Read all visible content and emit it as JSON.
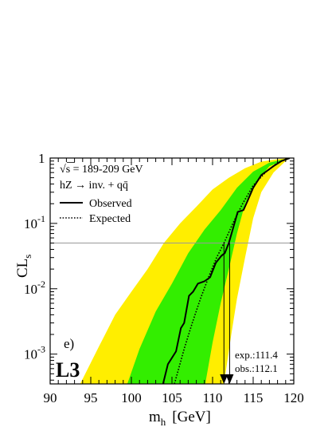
{
  "chart_data": {
    "type": "area",
    "panel_label": "e)",
    "logo": "L3",
    "xlabel": "m",
    "xlabel_sub": "h",
    "xlabel_unit": "[GeV]",
    "ylabel": "CL",
    "ylabel_sub": "s",
    "xlim": [
      90,
      120
    ],
    "ylim": [
      0.00035,
      1
    ],
    "yscale": "log",
    "x_ticks": [
      90,
      95,
      100,
      105,
      110,
      115,
      120
    ],
    "y_ticks": [
      {
        "value": 0.001,
        "base": "10",
        "exp": "-3"
      },
      {
        "value": 0.01,
        "base": "10",
        "exp": "-2"
      },
      {
        "value": 0.1,
        "base": "10",
        "exp": "-1"
      },
      {
        "value": 1,
        "base": "1",
        "exp": ""
      }
    ],
    "reference_line": 0.05,
    "legend": {
      "energy": "s = 189-209 GeV",
      "energy_prefix": "√",
      "process": "hZ → inv. + qq̄",
      "observed": "Observed",
      "expected": "Expected"
    },
    "limits_text": {
      "expected": "exp.:111.4",
      "observed": "obs.:112.1"
    },
    "limits": {
      "expected": 111.4,
      "observed": 112.1
    },
    "colors": {
      "band2": "#ffee00",
      "band1": "#33ee00"
    },
    "band_2sigma_lower": [
      [
        93.7,
        0.00035
      ],
      [
        96,
        0.0013
      ],
      [
        98,
        0.004
      ],
      [
        100,
        0.009
      ],
      [
        102,
        0.02
      ],
      [
        104,
        0.05
      ],
      [
        106,
        0.1
      ],
      [
        108,
        0.18
      ],
      [
        110,
        0.33
      ],
      [
        112,
        0.5
      ],
      [
        114,
        0.7
      ],
      [
        116,
        0.88
      ],
      [
        118,
        0.96
      ],
      [
        119.5,
        1
      ]
    ],
    "band_2sigma_upper": [
      [
        111.4,
        0.00035
      ],
      [
        112.3,
        0.002
      ],
      [
        113,
        0.007
      ],
      [
        114,
        0.03
      ],
      [
        115,
        0.12
      ],
      [
        116,
        0.3
      ],
      [
        117.5,
        0.6
      ],
      [
        119,
        0.9
      ],
      [
        119.5,
        1
      ]
    ],
    "band_1sigma_lower": [
      [
        99.5,
        0.00035
      ],
      [
        101,
        0.0012
      ],
      [
        103,
        0.0045
      ],
      [
        105,
        0.012
      ],
      [
        107,
        0.035
      ],
      [
        109,
        0.08
      ],
      [
        111,
        0.16
      ],
      [
        113,
        0.35
      ],
      [
        115,
        0.62
      ],
      [
        117,
        0.85
      ],
      [
        119,
        0.97
      ],
      [
        119.5,
        1
      ]
    ],
    "band_1sigma_upper": [
      [
        109.1,
        0.00035
      ],
      [
        110,
        0.0015
      ],
      [
        111,
        0.006
      ],
      [
        112,
        0.02
      ],
      [
        113,
        0.07
      ],
      [
        114,
        0.2
      ],
      [
        115.5,
        0.45
      ],
      [
        117,
        0.75
      ],
      [
        119,
        0.95
      ],
      [
        119.5,
        1
      ]
    ],
    "series": [
      {
        "name": "Observed",
        "style": "solid",
        "points": [
          [
            103.9,
            0.00035
          ],
          [
            104.5,
            0.0007
          ],
          [
            105.5,
            0.0011
          ],
          [
            106.1,
            0.0025
          ],
          [
            106.5,
            0.003
          ],
          [
            107.1,
            0.0078
          ],
          [
            107.6,
            0.009
          ],
          [
            108.2,
            0.012
          ],
          [
            109,
            0.013
          ],
          [
            109.7,
            0.015
          ],
          [
            110.4,
            0.025
          ],
          [
            111.1,
            0.032
          ],
          [
            111.5,
            0.035
          ],
          [
            112,
            0.05
          ],
          [
            112.7,
            0.1
          ],
          [
            113.1,
            0.15
          ],
          [
            113.8,
            0.16
          ],
          [
            114.3,
            0.22
          ],
          [
            115,
            0.35
          ],
          [
            116,
            0.55
          ],
          [
            117.5,
            0.75
          ],
          [
            118.5,
            0.9
          ],
          [
            119.5,
            1
          ]
        ]
      },
      {
        "name": "Expected",
        "style": "dotted",
        "points": [
          [
            105.3,
            0.00035
          ],
          [
            106.5,
            0.0012
          ],
          [
            107.5,
            0.003
          ],
          [
            108.5,
            0.007
          ],
          [
            109.5,
            0.015
          ],
          [
            110.5,
            0.03
          ],
          [
            111.4,
            0.05
          ],
          [
            112.5,
            0.1
          ],
          [
            113.7,
            0.2
          ],
          [
            115,
            0.38
          ],
          [
            116.5,
            0.6
          ],
          [
            118,
            0.85
          ],
          [
            119.5,
            1
          ]
        ]
      }
    ]
  }
}
